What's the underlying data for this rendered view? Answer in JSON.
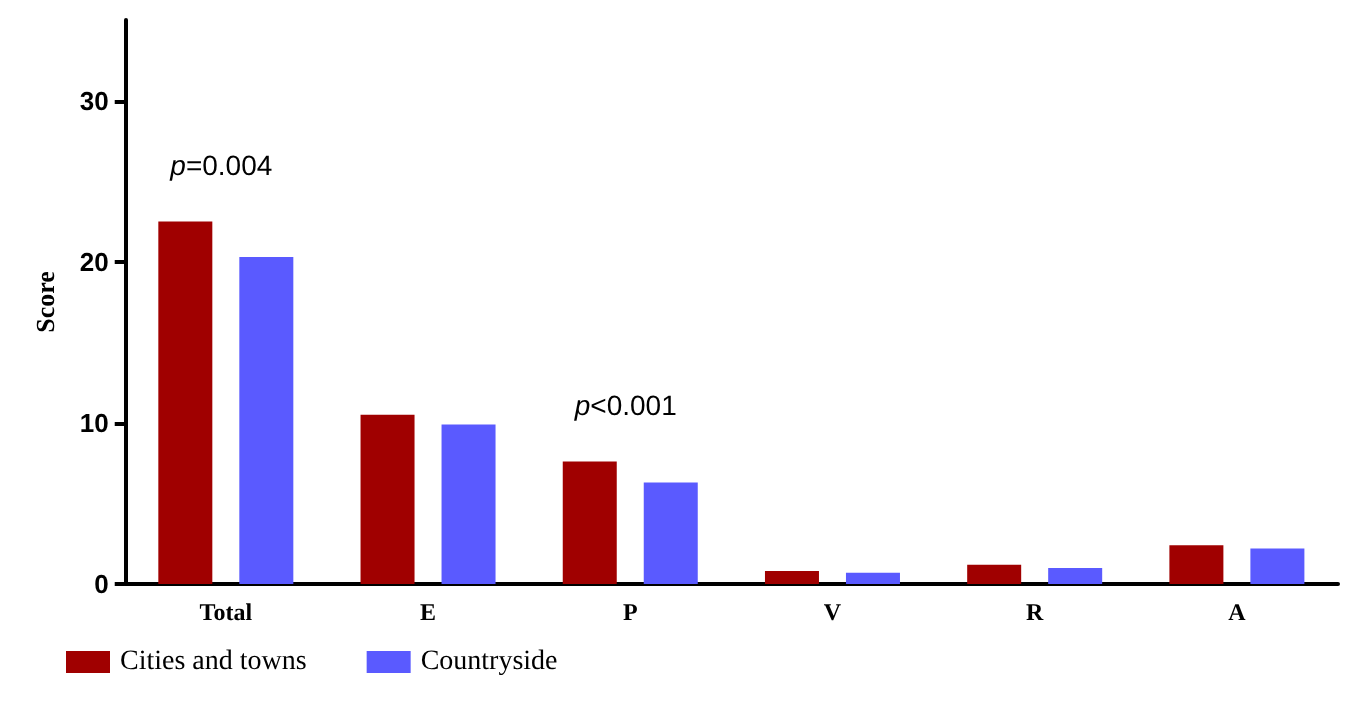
{
  "chart_data": {
    "type": "bar",
    "ylabel": "Score",
    "categories": [
      "Total",
      "E",
      "P",
      "V",
      "R",
      "A"
    ],
    "series": [
      {
        "name": "Cities and towns",
        "color": "#a00000",
        "values": [
          22.5,
          10.5,
          7.6,
          0.8,
          1.2,
          2.4
        ]
      },
      {
        "name": "Countryside",
        "color": "#5a5aff",
        "values": [
          20.3,
          9.9,
          6.3,
          0.7,
          1.0,
          2.2
        ]
      }
    ],
    "ylim": [
      0,
      35
    ],
    "yticks": [
      0,
      10,
      20,
      30
    ],
    "grid": false,
    "legend": "bottom left",
    "annotations": [
      "p=0.004",
      "p<0.001"
    ]
  }
}
